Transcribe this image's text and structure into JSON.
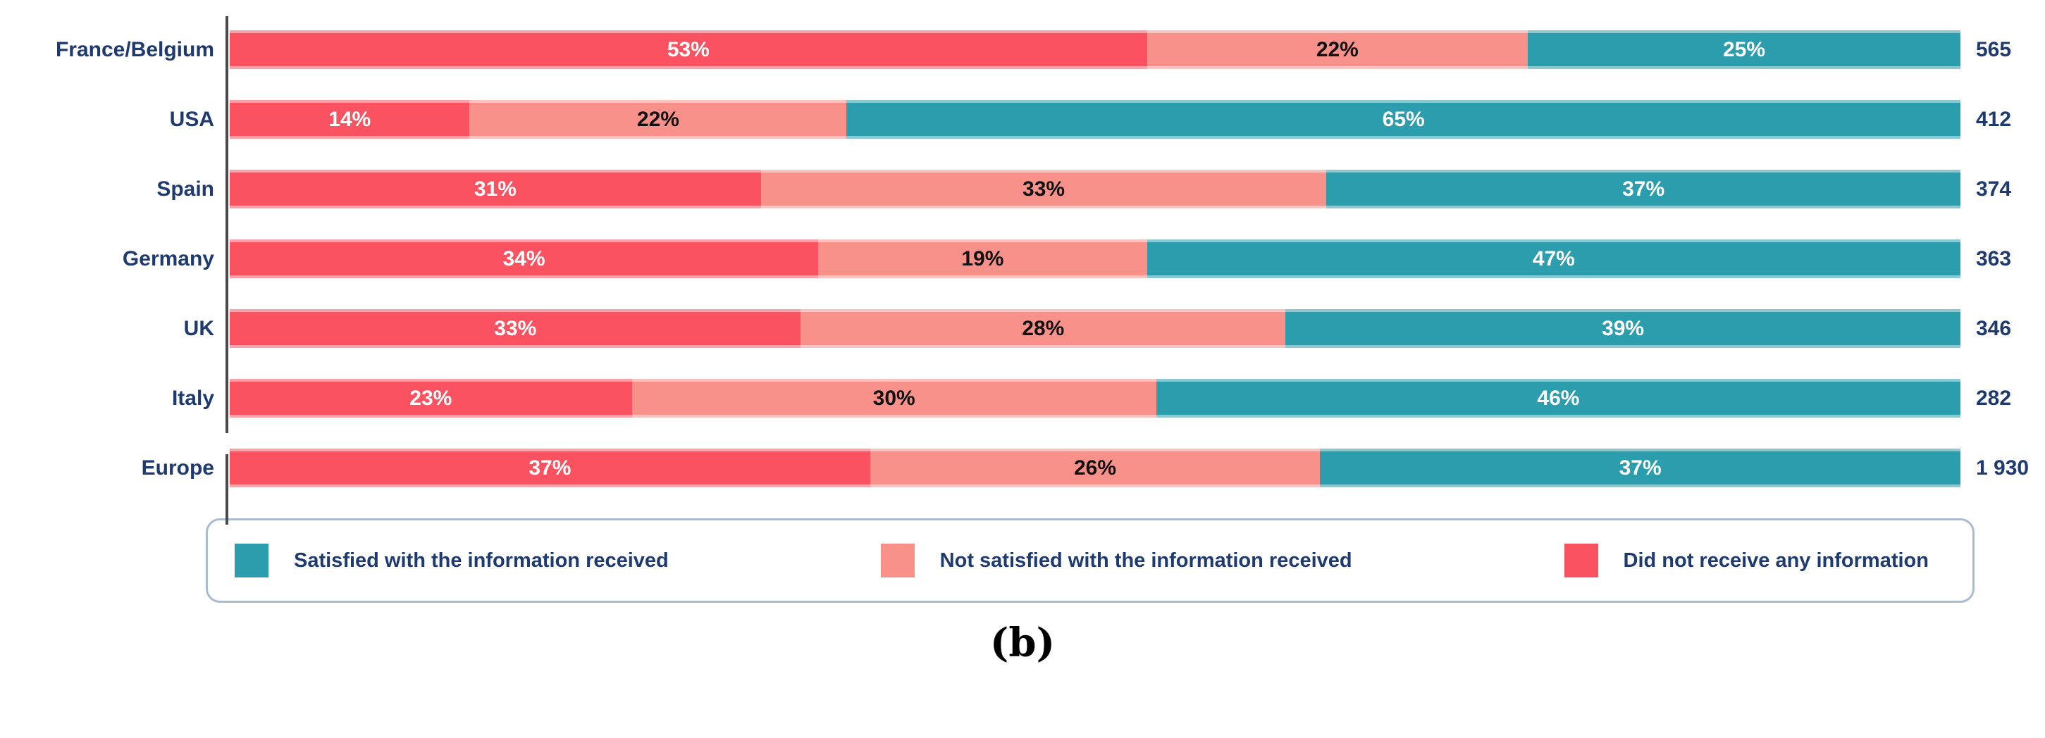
{
  "chart_data": {
    "type": "bar",
    "orientation": "horizontal",
    "stacked": true,
    "unit": "%",
    "categories": [
      "France/Belgium",
      "USA",
      "Spain",
      "Germany",
      "UK",
      "Italy",
      "Europe"
    ],
    "series": [
      {
        "key": "did-not-receive",
        "name": "Did not receive any information",
        "color": "#fb5261",
        "label_color": "#ffffff",
        "values": [
          53,
          14,
          31,
          34,
          33,
          23,
          37
        ]
      },
      {
        "key": "not-satisfied",
        "name": "Not satisfied with the information received",
        "color": "#f9918b",
        "label_color": "#111111",
        "values": [
          22,
          22,
          33,
          19,
          28,
          30,
          26
        ]
      },
      {
        "key": "satisfied",
        "name": "Satisfied with the information received",
        "color": "#2b9dad",
        "label_color": "#ffffff",
        "values": [
          25,
          65,
          37,
          47,
          39,
          46,
          37
        ]
      }
    ],
    "totals": [
      "565",
      "412",
      "374",
      "363",
      "346",
      "282",
      "1 930"
    ],
    "separated_category": "Europe",
    "legend_order": [
      "satisfied",
      "not-satisfied",
      "did-not-receive"
    ],
    "legend_position": "bottom",
    "grid": false,
    "xlim": [
      0,
      100
    ],
    "axis_color": "#4a4a4a",
    "category_label_color": "#1e3a6e",
    "total_label_color": "#1e3a6e"
  },
  "caption": "(b)"
}
